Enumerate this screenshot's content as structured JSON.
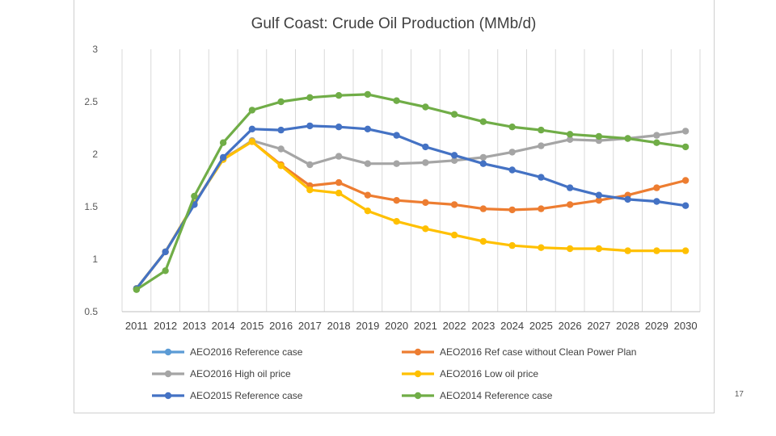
{
  "page": {
    "page_number": "17"
  },
  "chart_data": {
    "type": "line",
    "title": "Gulf Coast: Crude Oil Production (MMb/d)",
    "xlabel": "",
    "ylabel": "",
    "ylim": [
      0.5,
      3
    ],
    "yticks": [
      "0.5",
      "1",
      "1.5",
      "2",
      "2.5",
      "3"
    ],
    "grid": "vertical",
    "legend_position": "bottom",
    "categories": [
      "2011",
      "2012",
      "2013",
      "2014",
      "2015",
      "2016",
      "2017",
      "2018",
      "2019",
      "2020",
      "2021",
      "2022",
      "2023",
      "2024",
      "2025",
      "2026",
      "2027",
      "2028",
      "2029",
      "2030"
    ],
    "series": [
      {
        "name": "AEO2016 Reference case",
        "color": "#5b9bd5",
        "values": [
          null,
          null,
          null,
          null,
          null,
          null,
          null,
          null,
          null,
          null,
          null,
          null,
          null,
          null,
          null,
          null,
          null,
          null,
          null,
          null
        ]
      },
      {
        "name": "AEO2016 Ref case without Clean Power Plan",
        "color": "#ed7d31",
        "values": [
          0.72,
          1.07,
          1.53,
          1.96,
          2.12,
          1.9,
          1.7,
          1.73,
          1.61,
          1.56,
          1.54,
          1.52,
          1.48,
          1.47,
          1.48,
          1.52,
          1.56,
          1.61,
          1.68,
          1.75
        ]
      },
      {
        "name": "AEO2016 High oil price",
        "color": "#a5a5a5",
        "values": [
          0.72,
          1.07,
          1.53,
          1.95,
          2.13,
          2.05,
          1.9,
          1.98,
          1.91,
          1.91,
          1.92,
          1.94,
          1.97,
          2.02,
          2.08,
          2.14,
          2.13,
          2.15,
          2.18,
          2.22
        ]
      },
      {
        "name": "AEO2016 Low oil price",
        "color": "#ffc000",
        "values": [
          0.72,
          1.07,
          1.53,
          1.95,
          2.12,
          1.89,
          1.66,
          1.63,
          1.46,
          1.36,
          1.29,
          1.23,
          1.17,
          1.13,
          1.11,
          1.1,
          1.1,
          1.08,
          1.08,
          1.08
        ]
      },
      {
        "name": "AEO2015 Reference case",
        "color": "#4472c4",
        "values": [
          0.72,
          1.07,
          1.52,
          1.97,
          2.24,
          2.23,
          2.27,
          2.26,
          2.24,
          2.18,
          2.07,
          1.99,
          1.91,
          1.85,
          1.78,
          1.68,
          1.61,
          1.57,
          1.55,
          1.51
        ]
      },
      {
        "name": "AEO2014 Reference case",
        "color": "#70ad47",
        "values": [
          0.71,
          0.89,
          1.6,
          2.11,
          2.42,
          2.5,
          2.54,
          2.56,
          2.57,
          2.51,
          2.45,
          2.38,
          2.31,
          2.26,
          2.23,
          2.19,
          2.17,
          2.15,
          2.11,
          2.07
        ]
      }
    ]
  }
}
